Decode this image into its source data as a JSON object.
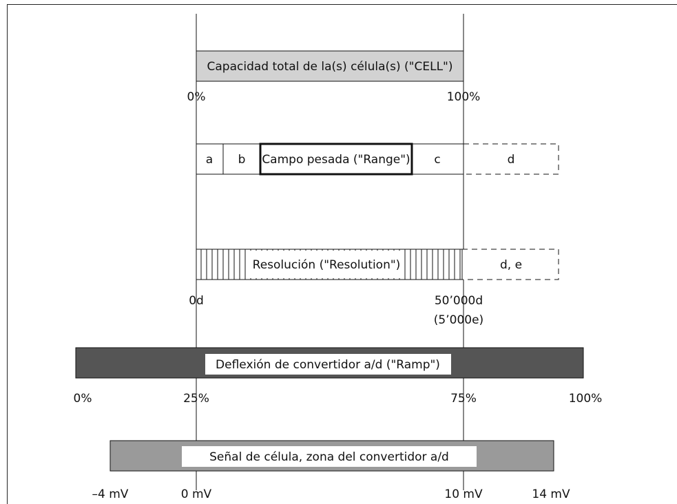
{
  "cell_bar": {
    "label": "Capacidad total de la(s) célula(s) (\"CELL\")",
    "left_label": "0%",
    "right_label": "100%"
  },
  "range_bar": {
    "a": "a",
    "b": "b",
    "range": "Campo pesada (\"Range\")",
    "c": "c",
    "d": "d"
  },
  "resolution_bar": {
    "label": "Resolución (\"Resolution\")",
    "extra": "d, e",
    "left_label": "0d",
    "right_label": "50’000d",
    "right_sublabel": "(5’000e)"
  },
  "ramp_bar": {
    "label": "Deflexión de convertidor a/d (\"Ramp\")",
    "ticks": [
      "0%",
      "25%",
      "75%",
      "100%"
    ]
  },
  "signal_bar": {
    "label": "Señal de célula, zona del convertidor a/d",
    "ticks": [
      "–4 mV",
      "0 mV",
      "10 mV",
      "14 mV"
    ]
  },
  "colors": {
    "cell_fill": "#d2d2d2",
    "ramp_fill": "#555555",
    "signal_fill": "#9a9a9a"
  }
}
